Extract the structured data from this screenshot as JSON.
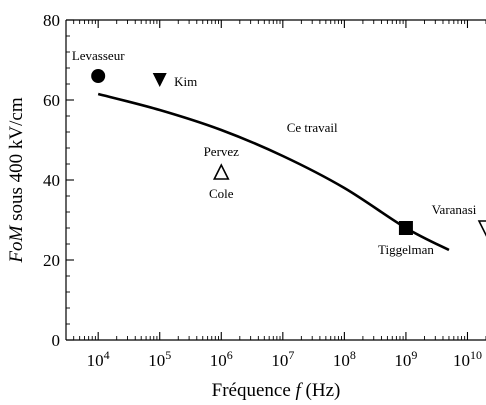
{
  "chart_data": {
    "type": "scatter",
    "xlabel_text": "Fréquence ",
    "xlabel_var": "f",
    "xlabel_unit": " (Hz)",
    "ylabel_var": "FoM",
    "ylabel_text": " sous 400 kV/cm",
    "x_scale": "log",
    "xlim": [
      3000,
      20000000000
    ],
    "ylim": [
      0,
      80
    ],
    "grid": false,
    "y_ticks": [
      {
        "value": 0,
        "label": "0"
      },
      {
        "value": 20,
        "label": "20"
      },
      {
        "value": 40,
        "label": "40"
      },
      {
        "value": 60,
        "label": "60"
      },
      {
        "value": 80,
        "label": "80"
      }
    ],
    "x_ticks": [
      {
        "exp": 4,
        "base": "10",
        "sup": "4"
      },
      {
        "exp": 5,
        "base": "10",
        "sup": "5"
      },
      {
        "exp": 6,
        "base": "10",
        "sup": "6"
      },
      {
        "exp": 7,
        "base": "10",
        "sup": "7"
      },
      {
        "exp": 8,
        "base": "10",
        "sup": "8"
      },
      {
        "exp": 9,
        "base": "10",
        "sup": "9"
      },
      {
        "exp": 10,
        "base": "10",
        "sup": "10"
      }
    ],
    "points": [
      {
        "x": 10000,
        "y": 66,
        "marker": "circle-filled",
        "label": "Levasseur",
        "label_pos": "above"
      },
      {
        "x": 100000,
        "y": 65,
        "marker": "triangle-down-filled",
        "label": "Kim",
        "label_pos": "right"
      },
      {
        "x": 1000000,
        "y": 42,
        "marker": "triangle-up-open",
        "label": "Pervez",
        "label_pos": "above"
      },
      {
        "x": 1000000,
        "y": 42,
        "marker": "triangle-up-open",
        "label": "Cole",
        "label_pos": "below"
      },
      {
        "x": 1000000000,
        "y": 28,
        "marker": "square-filled",
        "label": "Tiggelman",
        "label_pos": "below"
      },
      {
        "x": 20000000000,
        "y": 28,
        "marker": "triangle-down-open",
        "label": "Varanasi",
        "label_pos": "above-left"
      }
    ],
    "series": [
      {
        "name": "Ce travail",
        "type": "line",
        "x": [
          10000,
          100000,
          1000000,
          10000000,
          100000000,
          1000000000,
          5000000000
        ],
        "y": [
          61.5,
          57.5,
          52.5,
          46,
          38,
          28,
          22.5
        ]
      }
    ]
  }
}
